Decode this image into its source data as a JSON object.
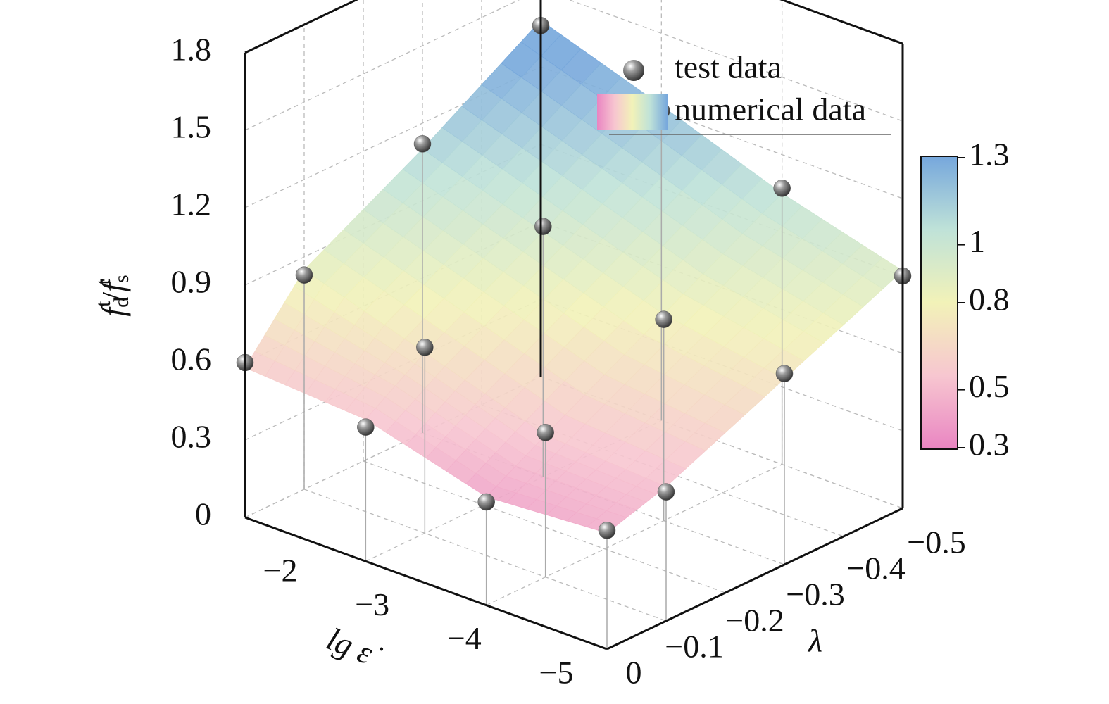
{
  "chart_data": {
    "type": "surface3d",
    "xlabel": "lg ε̇",
    "ylabel": "λ",
    "zlabel": [
      {
        "text": "f",
        "pos": "base"
      },
      {
        "text": "d",
        "pos": "sub"
      },
      {
        "text": "t",
        "pos": "sup"
      },
      {
        "text": "/",
        "pos": "base"
      },
      {
        "text": "f",
        "pos": "base"
      },
      {
        "text": "s",
        "pos": "sub"
      },
      {
        "text": "t",
        "pos": "sup"
      }
    ],
    "xlim": [
      -2,
      -5
    ],
    "xticks": [
      {
        "value": -2,
        "label": "−2"
      },
      {
        "value": -3,
        "label": "−3"
      },
      {
        "value": -4,
        "label": "−4"
      },
      {
        "value": -5,
        "label": "−5"
      }
    ],
    "ylim": [
      0,
      -0.5
    ],
    "yticks": [
      0,
      {
        "value": -0.1,
        "label": "−0.1"
      },
      {
        "value": -0.2,
        "label": "−0.2"
      },
      {
        "value": -0.3,
        "label": "−0.3"
      },
      {
        "value": -0.4,
        "label": "−0.4"
      },
      {
        "value": -0.5,
        "label": "−0.5"
      }
    ],
    "zlim": [
      0,
      1.8
    ],
    "zticks": [
      0,
      0.3,
      0.6,
      0.9,
      1.2,
      1.5,
      1.8
    ],
    "grid": true,
    "colormap": [
      "#e985c2",
      "#f7c6d0",
      "#f2f2b8",
      "#bfe2d8",
      "#76a7dc"
    ],
    "colorbar": {
      "lim": [
        0.3,
        1.3
      ],
      "ticks": [
        0.3,
        0.5,
        0.8,
        1.0,
        1.3
      ]
    },
    "surface": {
      "name": "numerical data",
      "x": [
        -2,
        -3,
        -4,
        -5
      ],
      "y": [
        0,
        -0.1,
        -0.3,
        -0.5
      ],
      "values": [
        [
          0.58,
          0.85,
          1.1,
          1.38
        ],
        [
          0.55,
          0.7,
          0.95,
          1.22
        ],
        [
          0.42,
          0.55,
          0.8,
          1.05
        ],
        [
          0.45,
          0.52,
          0.72,
          0.92
        ]
      ]
    },
    "series": [
      {
        "name": "test data",
        "color": "#555555",
        "x": [
          -2,
          -2,
          -2,
          -2,
          -3,
          -3,
          -3,
          -3,
          -4,
          -4,
          -4,
          -4,
          -5,
          -5,
          -5,
          -5
        ],
        "y": [
          0,
          -0.1,
          -0.3,
          -0.5,
          0,
          -0.1,
          -0.3,
          -0.5,
          0,
          -0.1,
          -0.3,
          -0.5,
          0,
          -0.1,
          -0.3,
          -0.5
        ],
        "values": [
          0.6,
          0.83,
          1.12,
          1.36,
          0.52,
          0.72,
          0.97,
          1.2,
          0.4,
          0.56,
          0.78,
          1.07,
          0.46,
          0.5,
          0.74,
          0.9
        ]
      }
    ]
  }
}
